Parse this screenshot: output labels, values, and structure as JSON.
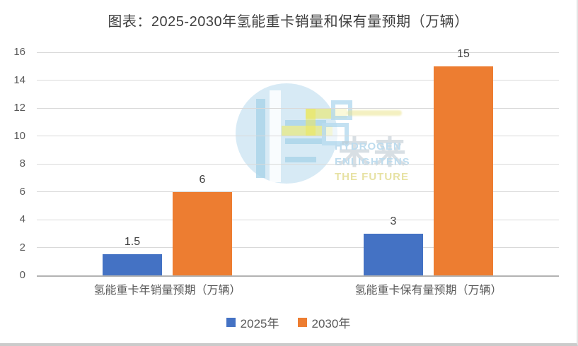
{
  "chart_data": {
    "type": "bar",
    "title": "图表：2025-2030年氢能重卡销量和保有量预期（万辆）",
    "categories": [
      "氢能重卡年销量预期（万辆）",
      "氢能重卡保有量预期（万辆）"
    ],
    "series": [
      {
        "name": "2025年",
        "color": "#4472C4",
        "values": [
          1.5,
          3
        ]
      },
      {
        "name": "2030年",
        "color": "#ED7D31",
        "values": [
          6,
          15
        ]
      }
    ],
    "ylim": [
      0,
      16
    ],
    "yticks": [
      0,
      2,
      4,
      6,
      8,
      10,
      12,
      14,
      16
    ],
    "grid": true,
    "legend_position": "bottom",
    "grid_color": "#d9d9d9",
    "axis_color": "#b3b3b3",
    "tick_label_color": "#595959",
    "data_label_color": "#404040"
  },
  "watermark": {
    "cn": "未来",
    "en1": "HYDROGEN",
    "en2": "ENLIGHTENS",
    "en3": "THE FUTURE"
  }
}
